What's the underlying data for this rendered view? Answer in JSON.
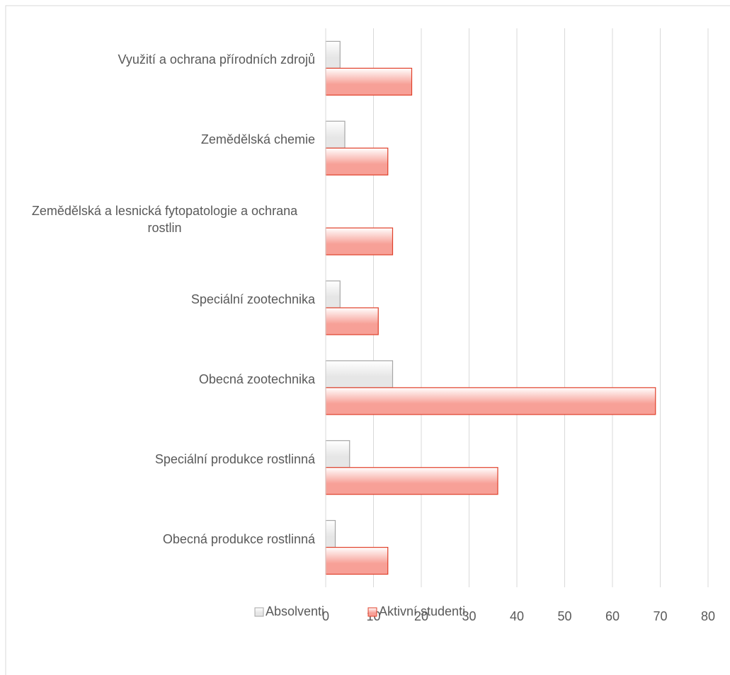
{
  "chart_data": {
    "type": "bar",
    "orientation": "horizontal",
    "categories": [
      "Využití a ochrana přírodních zdrojů",
      "Zemědělská chemie",
      "Zemědělská a lesnická fytopatologie a ochrana rostlin",
      "Speciální zootechnika",
      "Obecná zootechnika",
      "Speciální produkce rostlinná",
      "Obecná produkce rostlinná"
    ],
    "series": [
      {
        "name": "Absolventi",
        "color": "#e6e6e6",
        "values": [
          3,
          4,
          0,
          3,
          14,
          5,
          2
        ]
      },
      {
        "name": "Aktivní studenti",
        "color": "#f7a097",
        "values": [
          18,
          13,
          14,
          11,
          69,
          36,
          13
        ]
      }
    ],
    "xlim": [
      0,
      80
    ],
    "xticks": [
      0,
      10,
      20,
      30,
      40,
      50,
      60,
      70,
      80
    ],
    "grid": true,
    "legend": "bottom"
  }
}
